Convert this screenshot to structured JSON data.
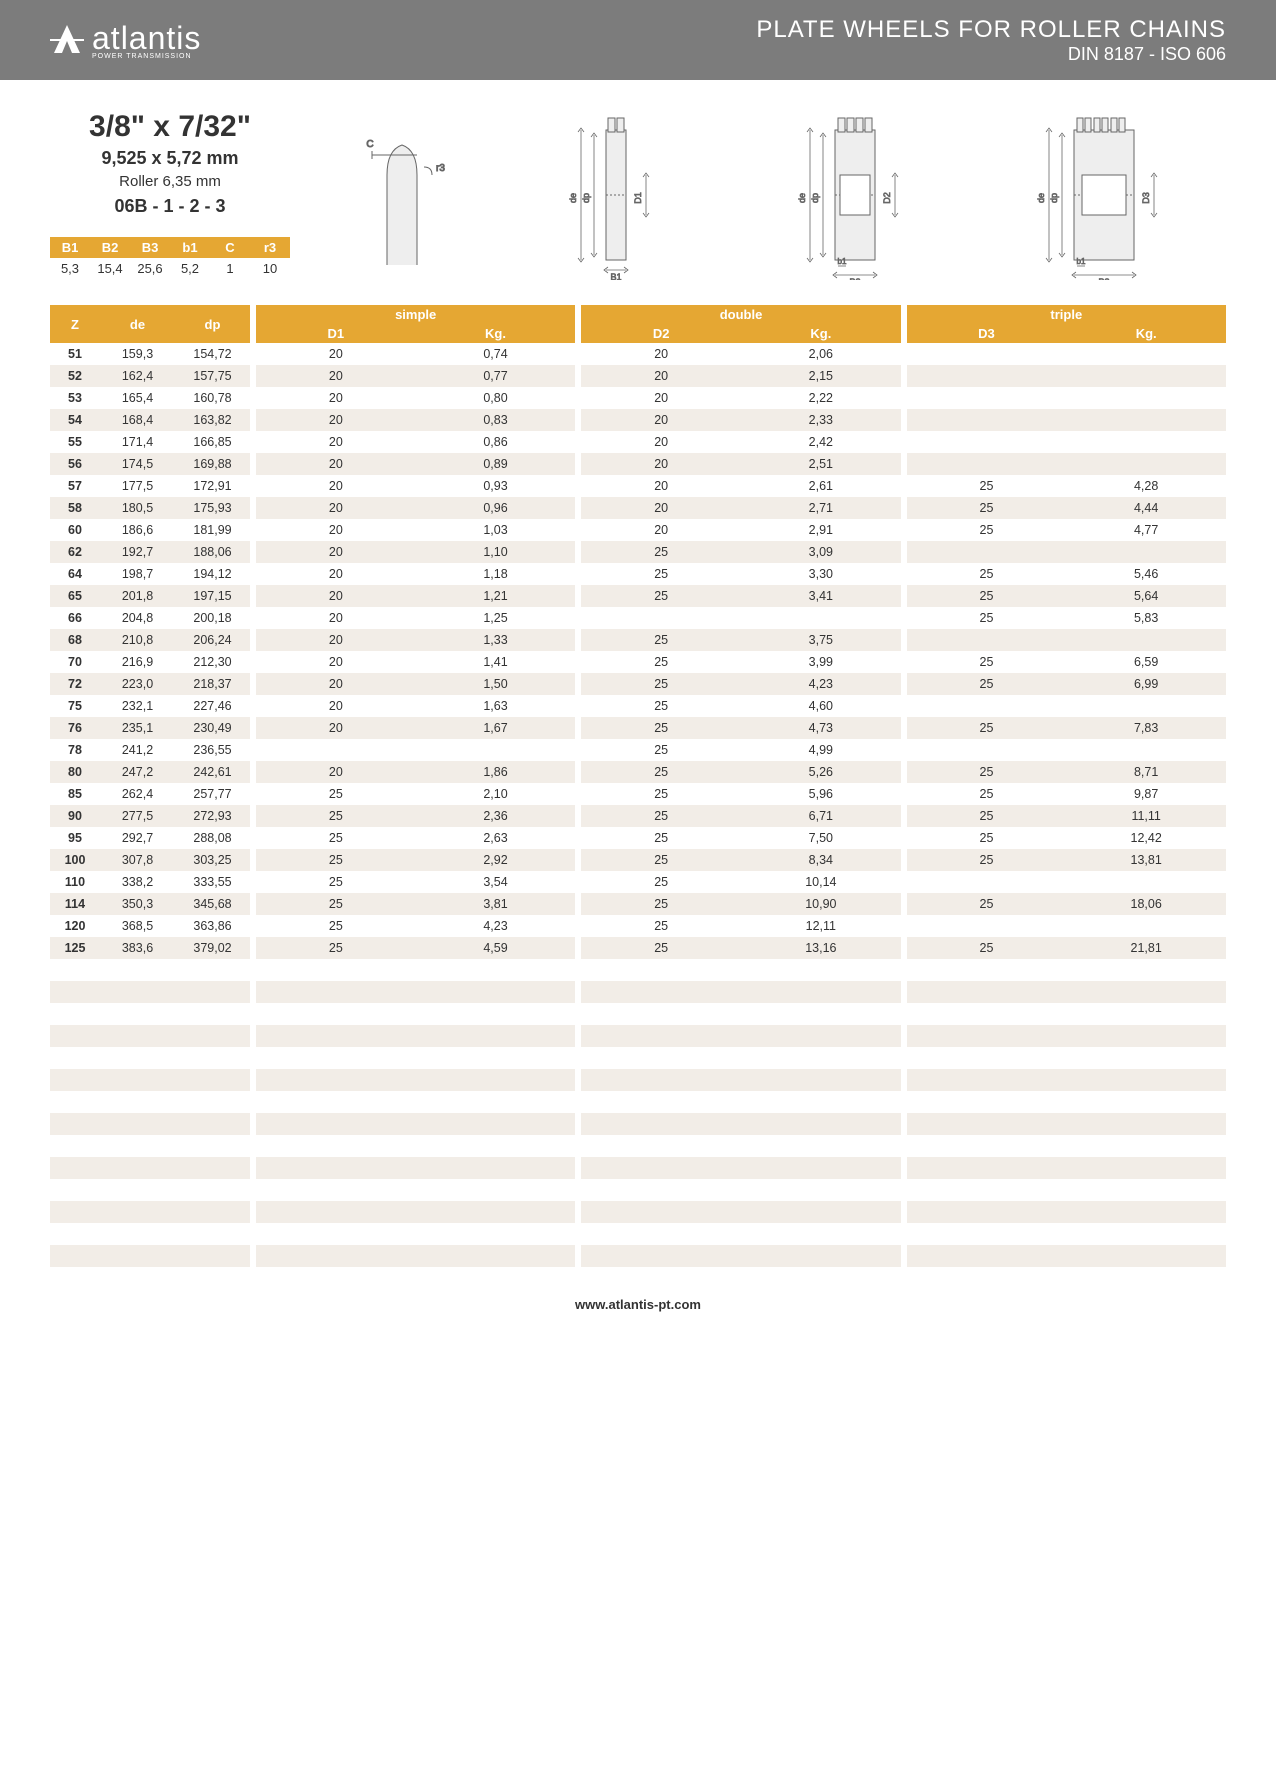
{
  "header": {
    "logo_text": "atlantis",
    "logo_sub": "POWER TRANSMISSION",
    "title": "PLATE WHEELS FOR ROLLER CHAINS",
    "subtitle": "DIN 8187 - ISO 606"
  },
  "spec": {
    "imperial": "3/8\" x 7/32\"",
    "metric": "9,525 x 5,72 mm",
    "roller": "Roller 6,35 mm",
    "code": "06B - 1 - 2 - 3"
  },
  "params": {
    "headers": [
      "B1",
      "B2",
      "B3",
      "b1",
      "C",
      "r3"
    ],
    "values": [
      "5,3",
      "15,4",
      "25,6",
      "5,2",
      "1",
      "10"
    ]
  },
  "diagram_labels": {
    "c": "C",
    "r3": "r3",
    "de": "de",
    "dp": "dp",
    "d1": "D1",
    "d2": "D2",
    "d3": "D3",
    "b1_cap": "B1",
    "b1": "b1",
    "b2": "B2",
    "b3": "B3"
  },
  "table": {
    "group_labels": {
      "simple": "simple",
      "double": "double",
      "triple": "triple"
    },
    "zde_headers": [
      "Z",
      "de",
      "dp"
    ],
    "sd_headers": {
      "simple": [
        "D1",
        "Kg."
      ],
      "double": [
        "D2",
        "Kg."
      ],
      "triple": [
        "D3",
        "Kg."
      ]
    },
    "colors": {
      "header_bg": "#e5a733",
      "header_fg": "#ffffff",
      "row_even_bg": "#f2ede7",
      "row_odd_bg": "#ffffff"
    },
    "rows": [
      {
        "Z": "51",
        "de": "159,3",
        "dp": "154,72",
        "D1": "20",
        "Kg1": "0,74",
        "D2": "20",
        "Kg2": "2,06",
        "D3": "",
        "Kg3": ""
      },
      {
        "Z": "52",
        "de": "162,4",
        "dp": "157,75",
        "D1": "20",
        "Kg1": "0,77",
        "D2": "20",
        "Kg2": "2,15",
        "D3": "",
        "Kg3": ""
      },
      {
        "Z": "53",
        "de": "165,4",
        "dp": "160,78",
        "D1": "20",
        "Kg1": "0,80",
        "D2": "20",
        "Kg2": "2,22",
        "D3": "",
        "Kg3": ""
      },
      {
        "Z": "54",
        "de": "168,4",
        "dp": "163,82",
        "D1": "20",
        "Kg1": "0,83",
        "D2": "20",
        "Kg2": "2,33",
        "D3": "",
        "Kg3": ""
      },
      {
        "Z": "55",
        "de": "171,4",
        "dp": "166,85",
        "D1": "20",
        "Kg1": "0,86",
        "D2": "20",
        "Kg2": "2,42",
        "D3": "",
        "Kg3": ""
      },
      {
        "Z": "56",
        "de": "174,5",
        "dp": "169,88",
        "D1": "20",
        "Kg1": "0,89",
        "D2": "20",
        "Kg2": "2,51",
        "D3": "",
        "Kg3": ""
      },
      {
        "Z": "57",
        "de": "177,5",
        "dp": "172,91",
        "D1": "20",
        "Kg1": "0,93",
        "D2": "20",
        "Kg2": "2,61",
        "D3": "25",
        "Kg3": "4,28"
      },
      {
        "Z": "58",
        "de": "180,5",
        "dp": "175,93",
        "D1": "20",
        "Kg1": "0,96",
        "D2": "20",
        "Kg2": "2,71",
        "D3": "25",
        "Kg3": "4,44"
      },
      {
        "Z": "60",
        "de": "186,6",
        "dp": "181,99",
        "D1": "20",
        "Kg1": "1,03",
        "D2": "20",
        "Kg2": "2,91",
        "D3": "25",
        "Kg3": "4,77"
      },
      {
        "Z": "62",
        "de": "192,7",
        "dp": "188,06",
        "D1": "20",
        "Kg1": "1,10",
        "D2": "25",
        "Kg2": "3,09",
        "D3": "",
        "Kg3": ""
      },
      {
        "Z": "64",
        "de": "198,7",
        "dp": "194,12",
        "D1": "20",
        "Kg1": "1,18",
        "D2": "25",
        "Kg2": "3,30",
        "D3": "25",
        "Kg3": "5,46"
      },
      {
        "Z": "65",
        "de": "201,8",
        "dp": "197,15",
        "D1": "20",
        "Kg1": "1,21",
        "D2": "25",
        "Kg2": "3,41",
        "D3": "25",
        "Kg3": "5,64"
      },
      {
        "Z": "66",
        "de": "204,8",
        "dp": "200,18",
        "D1": "20",
        "Kg1": "1,25",
        "D2": "",
        "Kg2": "",
        "D3": "25",
        "Kg3": "5,83"
      },
      {
        "Z": "68",
        "de": "210,8",
        "dp": "206,24",
        "D1": "20",
        "Kg1": "1,33",
        "D2": "25",
        "Kg2": "3,75",
        "D3": "",
        "Kg3": ""
      },
      {
        "Z": "70",
        "de": "216,9",
        "dp": "212,30",
        "D1": "20",
        "Kg1": "1,41",
        "D2": "25",
        "Kg2": "3,99",
        "D3": "25",
        "Kg3": "6,59"
      },
      {
        "Z": "72",
        "de": "223,0",
        "dp": "218,37",
        "D1": "20",
        "Kg1": "1,50",
        "D2": "25",
        "Kg2": "4,23",
        "D3": "25",
        "Kg3": "6,99"
      },
      {
        "Z": "75",
        "de": "232,1",
        "dp": "227,46",
        "D1": "20",
        "Kg1": "1,63",
        "D2": "25",
        "Kg2": "4,60",
        "D3": "",
        "Kg3": ""
      },
      {
        "Z": "76",
        "de": "235,1",
        "dp": "230,49",
        "D1": "20",
        "Kg1": "1,67",
        "D2": "25",
        "Kg2": "4,73",
        "D3": "25",
        "Kg3": "7,83"
      },
      {
        "Z": "78",
        "de": "241,2",
        "dp": "236,55",
        "D1": "",
        "Kg1": "",
        "D2": "25",
        "Kg2": "4,99",
        "D3": "",
        "Kg3": ""
      },
      {
        "Z": "80",
        "de": "247,2",
        "dp": "242,61",
        "D1": "20",
        "Kg1": "1,86",
        "D2": "25",
        "Kg2": "5,26",
        "D3": "25",
        "Kg3": "8,71"
      },
      {
        "Z": "85",
        "de": "262,4",
        "dp": "257,77",
        "D1": "25",
        "Kg1": "2,10",
        "D2": "25",
        "Kg2": "5,96",
        "D3": "25",
        "Kg3": "9,87"
      },
      {
        "Z": "90",
        "de": "277,5",
        "dp": "272,93",
        "D1": "25",
        "Kg1": "2,36",
        "D2": "25",
        "Kg2": "6,71",
        "D3": "25",
        "Kg3": "11,11"
      },
      {
        "Z": "95",
        "de": "292,7",
        "dp": "288,08",
        "D1": "25",
        "Kg1": "2,63",
        "D2": "25",
        "Kg2": "7,50",
        "D3": "25",
        "Kg3": "12,42"
      },
      {
        "Z": "100",
        "de": "307,8",
        "dp": "303,25",
        "D1": "25",
        "Kg1": "2,92",
        "D2": "25",
        "Kg2": "8,34",
        "D3": "25",
        "Kg3": "13,81"
      },
      {
        "Z": "110",
        "de": "338,2",
        "dp": "333,55",
        "D1": "25",
        "Kg1": "3,54",
        "D2": "25",
        "Kg2": "10,14",
        "D3": "",
        "Kg3": ""
      },
      {
        "Z": "114",
        "de": "350,3",
        "dp": "345,68",
        "D1": "25",
        "Kg1": "3,81",
        "D2": "25",
        "Kg2": "10,90",
        "D3": "25",
        "Kg3": "18,06"
      },
      {
        "Z": "120",
        "de": "368,5",
        "dp": "363,86",
        "D1": "25",
        "Kg1": "4,23",
        "D2": "25",
        "Kg2": "12,11",
        "D3": "",
        "Kg3": ""
      },
      {
        "Z": "125",
        "de": "383,6",
        "dp": "379,02",
        "D1": "25",
        "Kg1": "4,59",
        "D2": "25",
        "Kg2": "13,16",
        "D3": "25",
        "Kg3": "21,81"
      }
    ],
    "blank_row_count": 14
  },
  "footer": {
    "url": "www.atlantis-pt.com"
  }
}
